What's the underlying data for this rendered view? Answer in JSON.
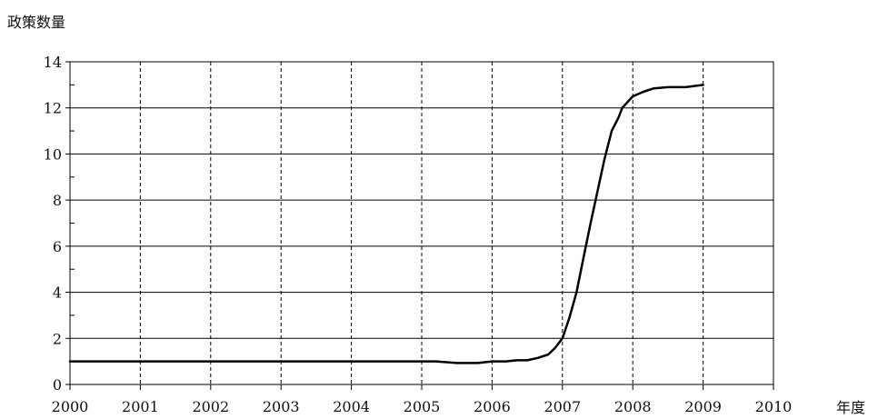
{
  "chart_data": {
    "type": "line",
    "ylabel": "政策数量",
    "xlabel": "年度",
    "xlim": [
      2000,
      2010
    ],
    "ylim": [
      0,
      14
    ],
    "x_ticks": [
      "2000",
      "2001",
      "2002",
      "2003",
      "2004",
      "2005",
      "2006",
      "2007",
      "2008",
      "2009",
      "2010"
    ],
    "y_ticks": [
      "0",
      "2",
      "4",
      "6",
      "8",
      "10",
      "12",
      "14"
    ],
    "grid": {
      "horizontal": "solid",
      "vertical": "dashed"
    },
    "line_color": "#000000",
    "series": [
      {
        "name": "",
        "points": [
          [
            2000.0,
            1.0
          ],
          [
            2001.0,
            1.0
          ],
          [
            2002.0,
            1.0
          ],
          [
            2003.0,
            1.0
          ],
          [
            2004.0,
            1.0
          ],
          [
            2005.0,
            1.0
          ],
          [
            2005.2,
            1.0
          ],
          [
            2005.5,
            0.93
          ],
          [
            2005.8,
            0.93
          ],
          [
            2006.0,
            1.0
          ],
          [
            2006.2,
            1.0
          ],
          [
            2006.35,
            1.05
          ],
          [
            2006.5,
            1.05
          ],
          [
            2006.65,
            1.15
          ],
          [
            2006.8,
            1.3
          ],
          [
            2006.9,
            1.6
          ],
          [
            2007.0,
            2.0
          ],
          [
            2007.1,
            2.9
          ],
          [
            2007.2,
            4.0
          ],
          [
            2007.3,
            5.5
          ],
          [
            2007.4,
            7.0
          ],
          [
            2007.5,
            8.4
          ],
          [
            2007.6,
            9.8
          ],
          [
            2007.7,
            11.0
          ],
          [
            2007.8,
            11.6
          ],
          [
            2007.85,
            12.0
          ],
          [
            2008.0,
            12.5
          ],
          [
            2008.15,
            12.7
          ],
          [
            2008.3,
            12.85
          ],
          [
            2008.5,
            12.9
          ],
          [
            2008.75,
            12.9
          ],
          [
            2009.0,
            13.0
          ]
        ]
      }
    ]
  }
}
